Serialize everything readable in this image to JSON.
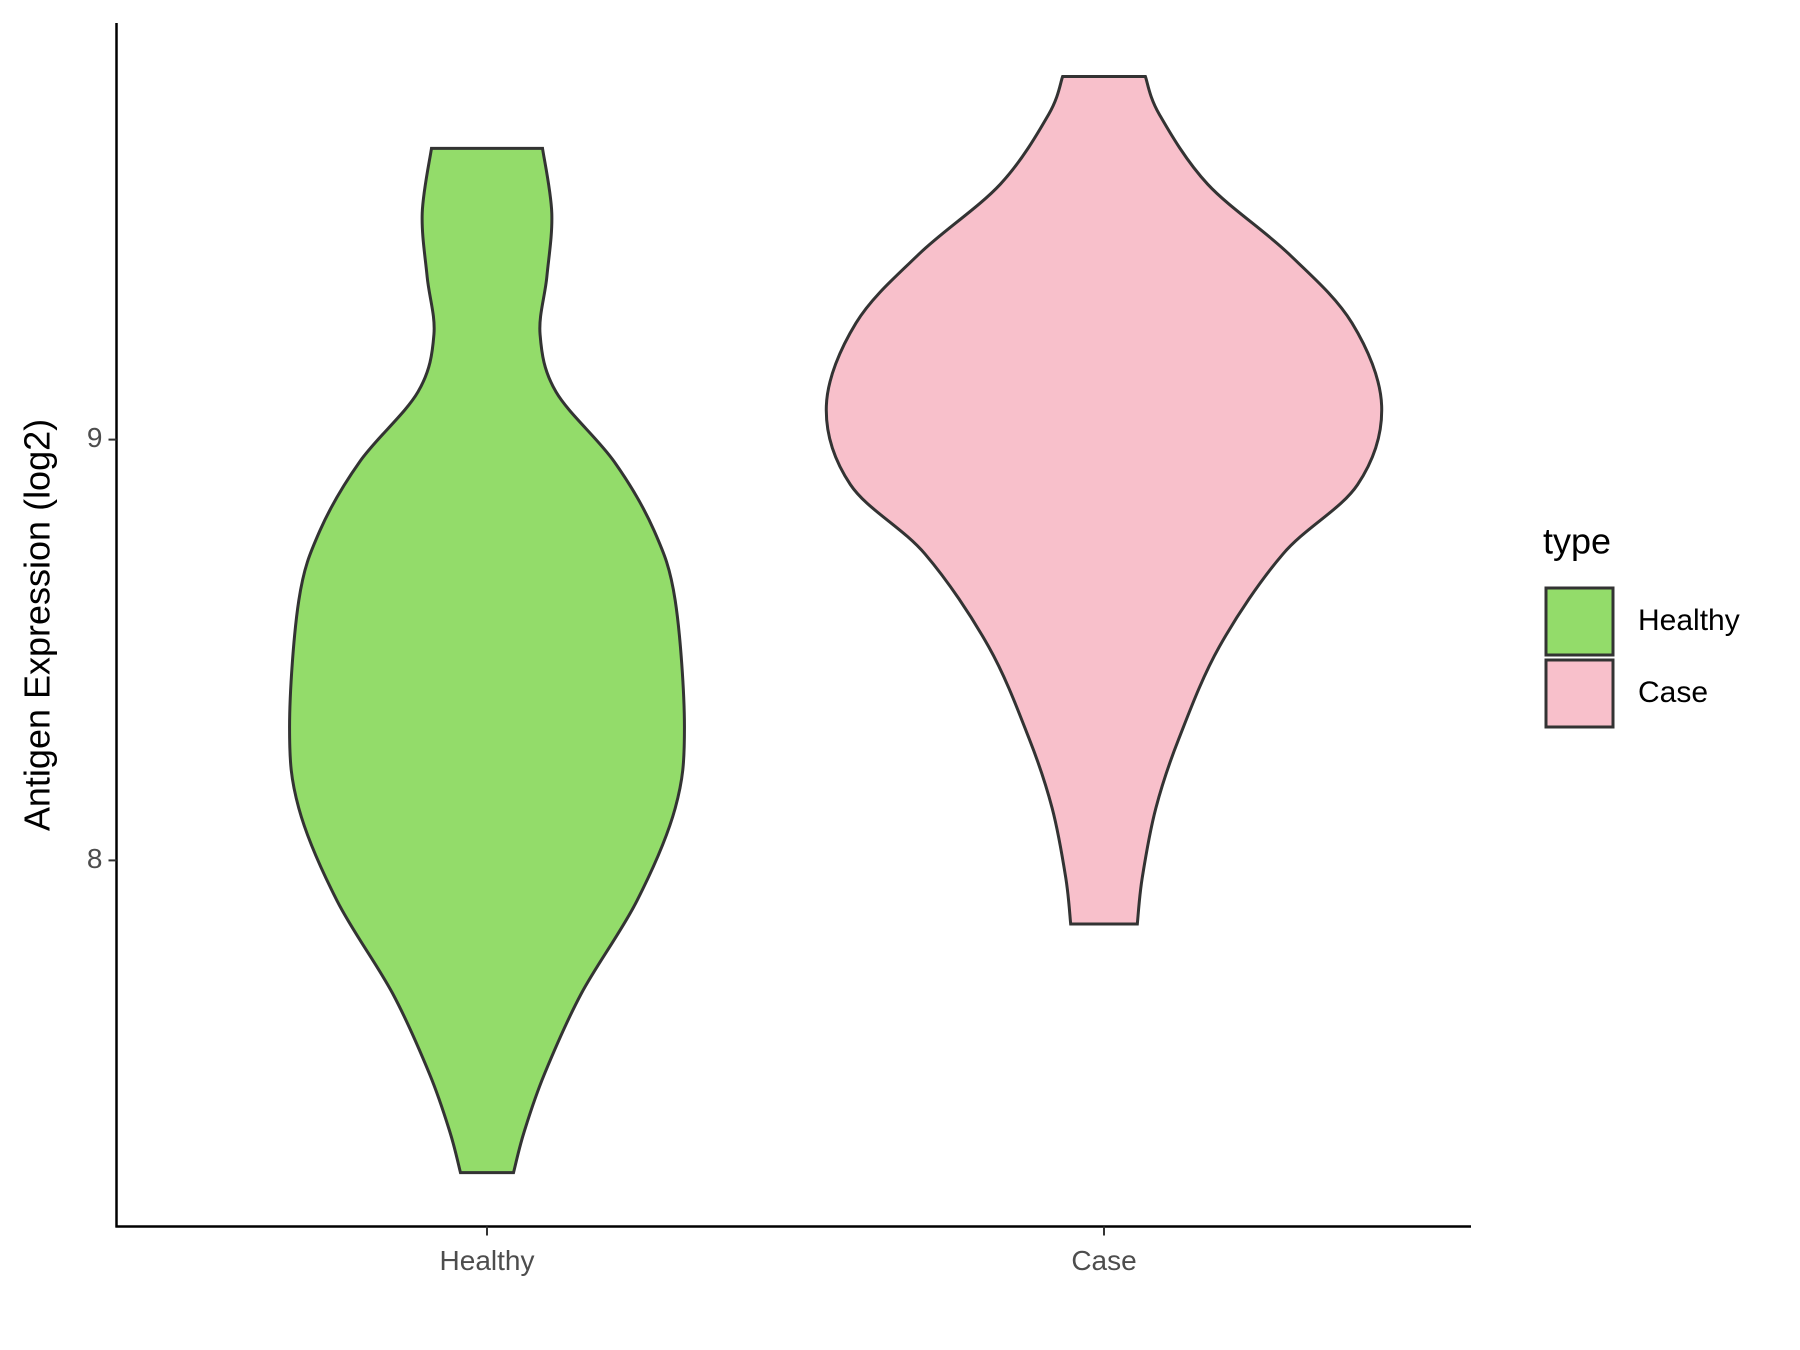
{
  "chart_data": {
    "type": "violin",
    "y_label": "Antigen Expression (log2)",
    "categories": [
      "Healthy",
      "Case"
    ],
    "ylim": [
      7.13,
      9.99
    ],
    "yticks": [
      8,
      9
    ],
    "legend_title": "type",
    "legend_position": "right",
    "series": [
      {
        "name": "Healthy",
        "color": "#93dc6a",
        "y": [
          9.692,
          9.538,
          9.387,
          9.25,
          9.113,
          8.948,
          8.783,
          8.618,
          8.316,
          8.124,
          7.904,
          7.684,
          7.492,
          7.354,
          7.258
        ],
        "widths": [
          0.09,
          0.105,
          0.097,
          0.086,
          0.112,
          0.206,
          0.271,
          0.305,
          0.32,
          0.305,
          0.243,
          0.153,
          0.093,
          0.06,
          0.043
        ]
      },
      {
        "name": "Case",
        "color": "#f8c0cb",
        "y": [
          9.863,
          9.772,
          9.607,
          9.442,
          9.277,
          9.08,
          8.893,
          8.728,
          8.508,
          8.288,
          8.124,
          7.959,
          7.849
        ],
        "widths": [
          0.067,
          0.09,
          0.168,
          0.299,
          0.402,
          0.45,
          0.411,
          0.29,
          0.187,
          0.121,
          0.084,
          0.062,
          0.054
        ]
      }
    ]
  }
}
